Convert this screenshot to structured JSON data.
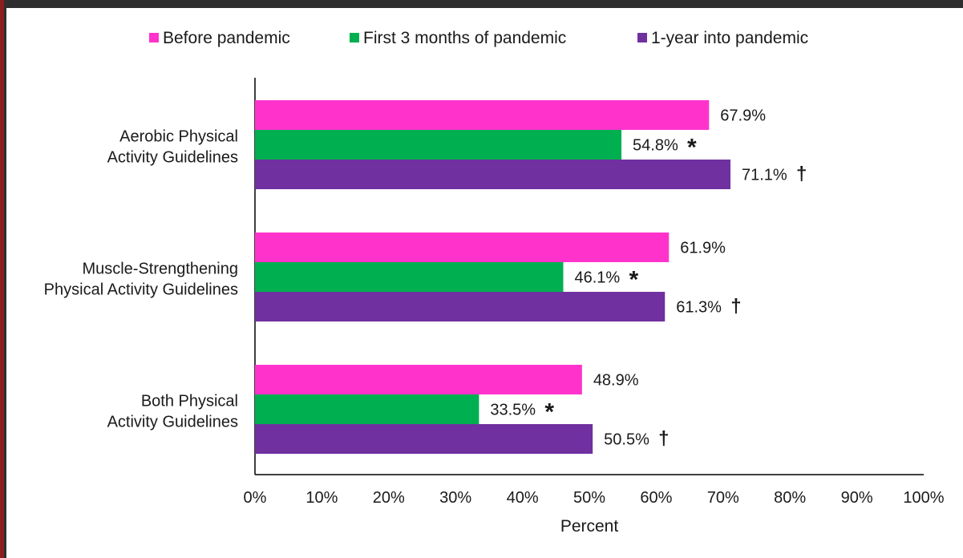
{
  "chart_data": {
    "type": "bar",
    "orientation": "horizontal",
    "categories": [
      [
        "Aerobic Physical",
        "Activity Guidelines"
      ],
      [
        "Muscle-Strengthening",
        "Physical Activity Guidelines"
      ],
      [
        "Both Physical",
        "Activity Guidelines"
      ]
    ],
    "series": [
      {
        "name": "Before pandemic",
        "color": "#ff33cc",
        "values": [
          67.9,
          61.9,
          48.9
        ],
        "labels": [
          "67.9%",
          "61.9%",
          "48.9%"
        ],
        "markers": [
          "",
          "",
          ""
        ]
      },
      {
        "name": "First 3 months of pandemic",
        "color": "#00b050",
        "values": [
          54.8,
          46.1,
          33.5
        ],
        "labels": [
          "54.8%",
          "46.1%",
          "33.5%"
        ],
        "markers": [
          "*",
          "*",
          "*"
        ]
      },
      {
        "name": "1-year into pandemic",
        "color": "#7030a0",
        "values": [
          71.1,
          61.3,
          50.5
        ],
        "labels": [
          "71.1%",
          "61.3%",
          "50.5%"
        ],
        "markers": [
          "†",
          "†",
          "†"
        ]
      }
    ],
    "xlabel": "Percent",
    "xlim": [
      0,
      100
    ],
    "xticks": [
      "0%",
      "10%",
      "20%",
      "30%",
      "40%",
      "50%",
      "60%",
      "70%",
      "80%",
      "90%",
      "100%"
    ],
    "grid": false,
    "legend_position": "top"
  }
}
